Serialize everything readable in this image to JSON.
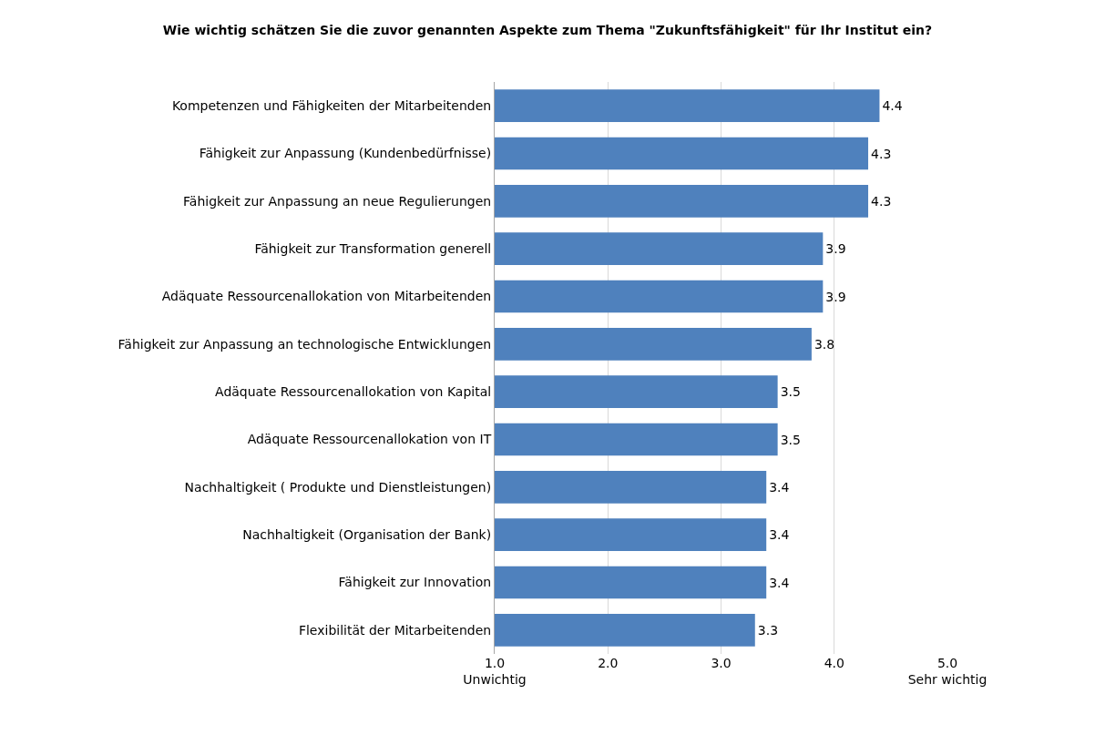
{
  "chart_data": {
    "type": "bar",
    "orientation": "horizontal",
    "title": "Wie wichtig schätzen Sie die zuvor genannten Aspekte zum Thema \"Zukunftsfähigkeit\" für Ihr Institut ein?",
    "categories": [
      "Kompetenzen und Fähigkeiten der Mitarbeitenden",
      "Fähigkeit zur Anpassung (Kundenbedürfnisse)",
      "Fähigkeit zur Anpassung an neue Regulierungen",
      "Fähigkeit zur Transformation generell",
      "Adäquate Ressourcenallokation von Mitarbeitenden",
      "Fähigkeit zur Anpassung an technologische Entwicklungen",
      "Adäquate Ressourcenallokation von Kapital",
      "Adäquate Ressourcenallokation von IT",
      "Nachhaltigkeit ( Produkte und Dienstleistungen)",
      "Nachhaltigkeit (Organisation der Bank)",
      "Fähigkeit zur Innovation",
      "Flexibilität der Mitarbeitenden"
    ],
    "values": [
      4.4,
      4.3,
      4.3,
      3.9,
      3.9,
      3.8,
      3.5,
      3.5,
      3.4,
      3.4,
      3.4,
      3.3
    ],
    "color": "#4f81bd",
    "data_labels": true,
    "xlim": [
      1,
      5
    ],
    "xticks": [
      {
        "value": 1,
        "label": "1.0\nUnwichtig"
      },
      {
        "value": 2,
        "label": "2.0"
      },
      {
        "value": 3,
        "label": "3.0"
      },
      {
        "value": 4,
        "label": "4.0"
      },
      {
        "value": 5,
        "label": "5.0\nSehr wichtig"
      }
    ],
    "grid": "x",
    "legend": false
  }
}
